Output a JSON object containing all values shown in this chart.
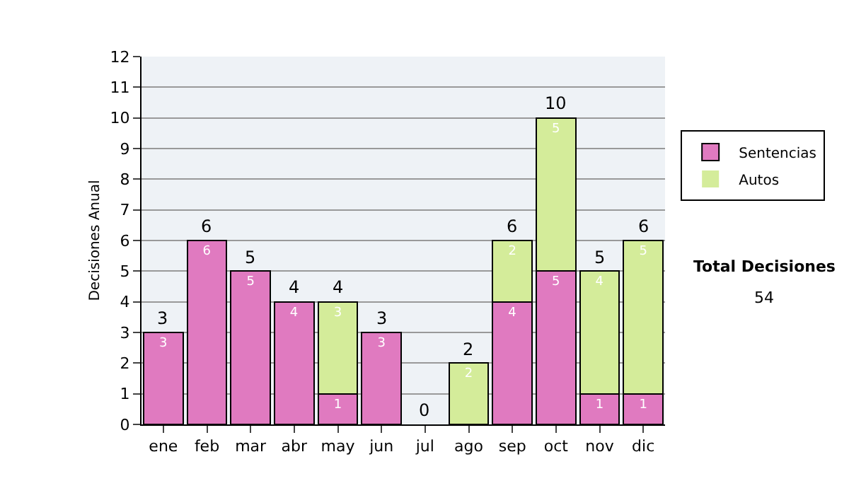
{
  "chart_data": {
    "type": "bar",
    "ylabel": "Decisiones Anual",
    "stacked": true,
    "categories": [
      "ene",
      "feb",
      "mar",
      "abr",
      "may",
      "jun",
      "jul",
      "ago",
      "sep",
      "oct",
      "nov",
      "dic"
    ],
    "series": [
      {
        "name": "Sentencias",
        "color": "#e07ac0",
        "values": [
          3,
          6,
          5,
          4,
          1,
          3,
          0,
          0,
          4,
          5,
          1,
          1
        ],
        "value_labels": [
          "3",
          "6",
          "5",
          "4",
          "1",
          "3",
          null,
          null,
          "4",
          "5",
          "1",
          "1"
        ]
      },
      {
        "name": "Autos",
        "color": "#d4ec9a",
        "values": [
          0,
          0,
          0,
          0,
          3,
          0,
          0,
          2,
          2,
          5,
          4,
          5
        ],
        "value_labels": [
          null,
          null,
          null,
          null,
          "3",
          null,
          null,
          "2",
          "2",
          "5",
          "4",
          "5"
        ]
      }
    ],
    "totals": [
      "3",
      "6",
      "5",
      "4",
      "4",
      "3",
      "0",
      "2",
      "6",
      "10",
      "5",
      "6"
    ],
    "ylim": [
      0,
      12
    ],
    "yticks": [
      0,
      1,
      2,
      3,
      4,
      5,
      6,
      7,
      8,
      9,
      10,
      11,
      12
    ],
    "grid": "y",
    "legend": "right",
    "annotations": [
      "Total Decisiones",
      "54"
    ]
  }
}
